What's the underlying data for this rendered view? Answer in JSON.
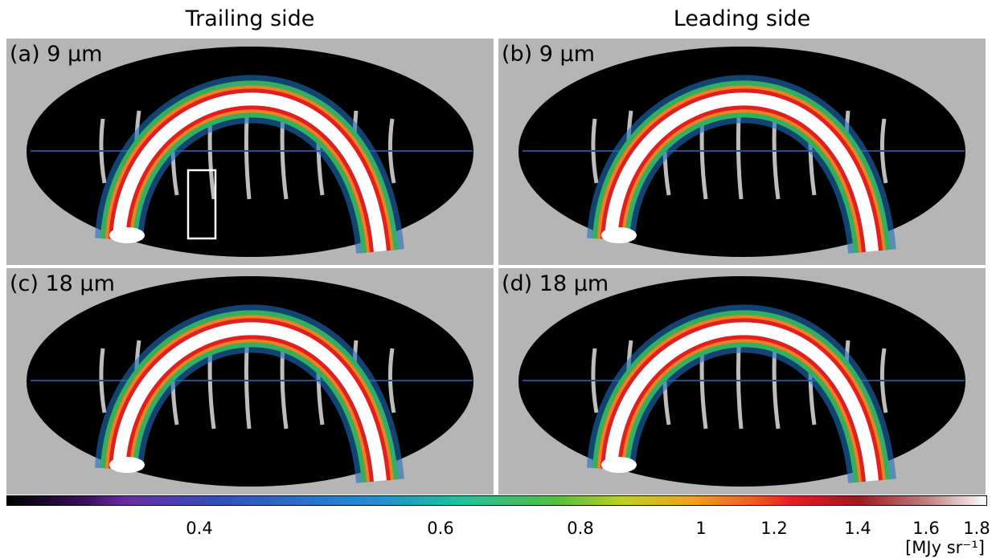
{
  "columns": [
    "Trailing side",
    "Leading side"
  ],
  "panels": [
    "(a) 9 μm",
    "(b) 9 μm",
    "(c) 18 μm",
    "(d) 18 μm"
  ],
  "colorbar": {
    "ticks": [
      "0.4",
      "0.6",
      "0.8",
      "1",
      "1.2",
      "1.4",
      "1.6",
      "1.8"
    ],
    "unit": "[MJy sr⁻¹]"
  }
}
